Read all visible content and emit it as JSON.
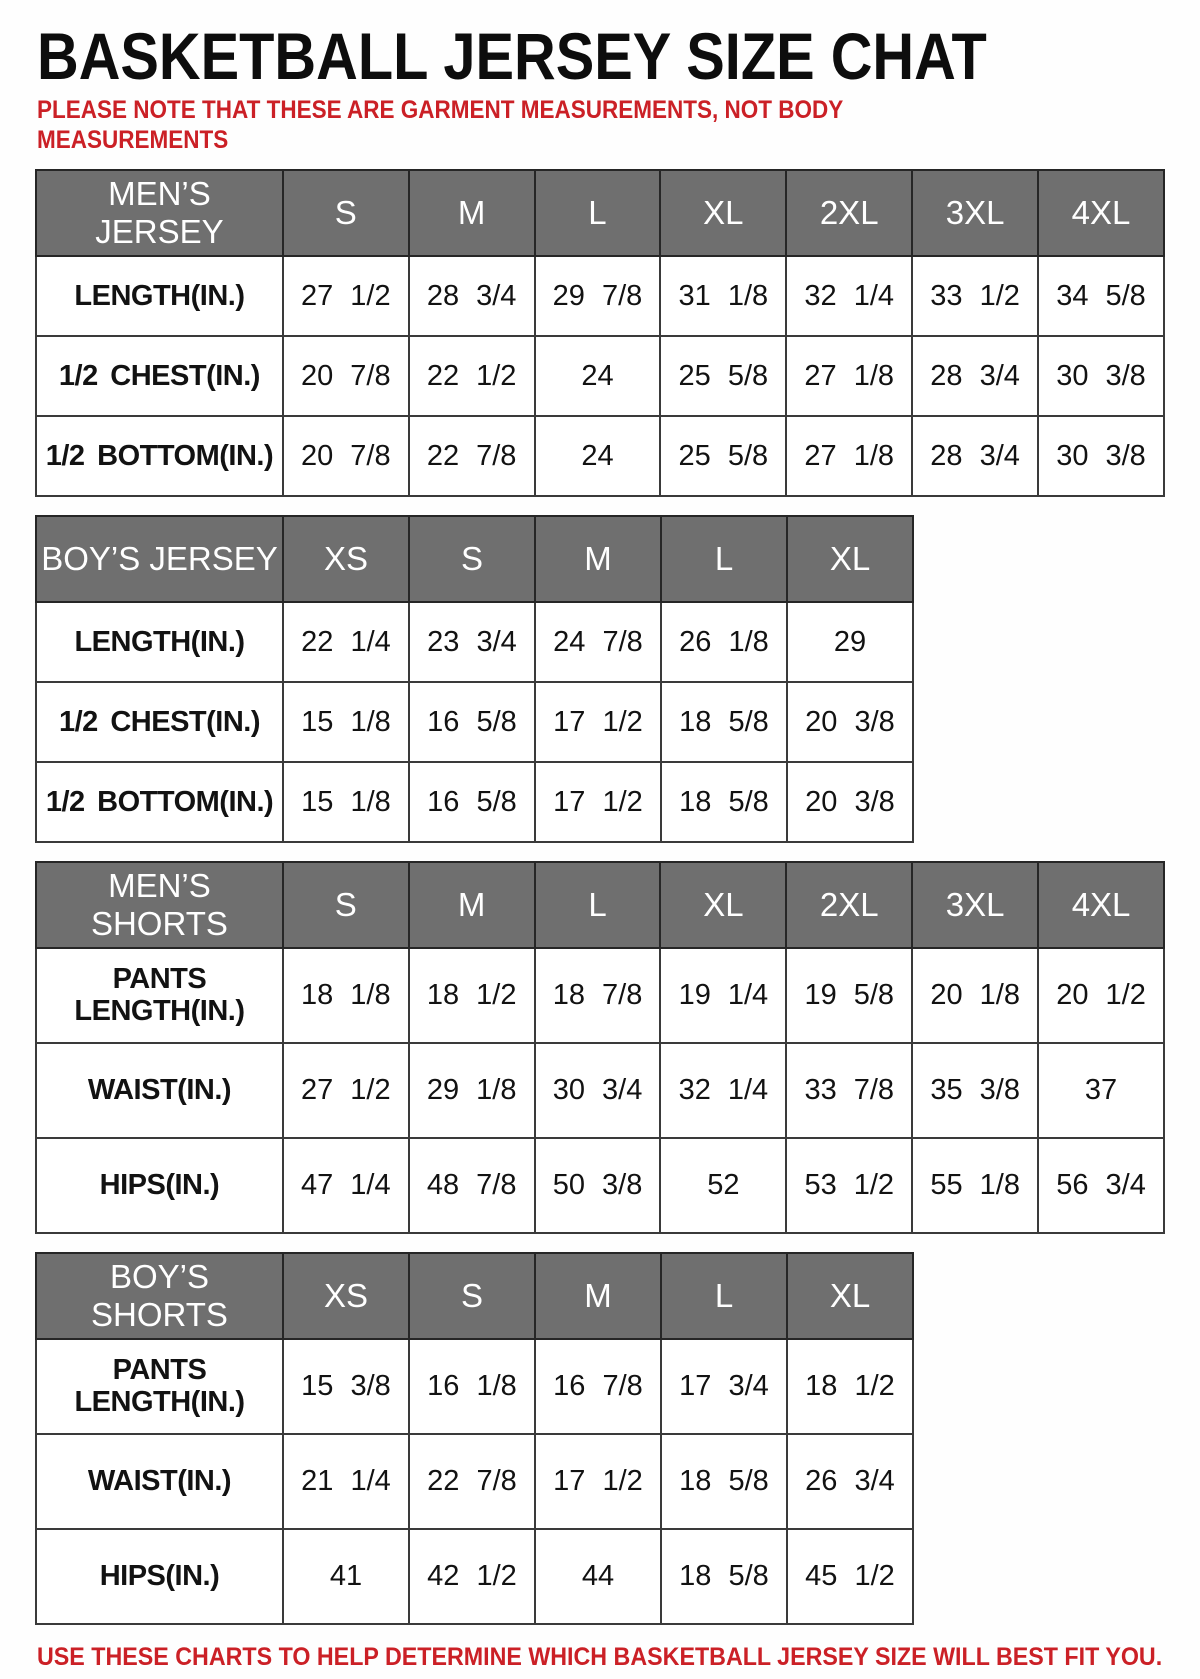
{
  "page": {
    "title": "BASKETBALL JERSEY SIZE CHAT",
    "note": "PLEASE NOTE THAT THESE ARE GARMENT MEASUREMENTS, NOT BODY MEASUREMENTS",
    "footer": "USE THESE CHARTS TO HELP DETERMINE WHICH BASKETBALL JERSEY SIZE WILL BEST FIT YOU.",
    "colors": {
      "accent_red": "#cb2026",
      "header_gray": "#6f6f6f",
      "header_text": "#ffffff",
      "border": "#3a3a3a"
    }
  },
  "tables": [
    {
      "name": "MEN’S JERSEY",
      "kind": "jersey",
      "columns": [
        "S",
        "M",
        "L",
        "XL",
        "2XL",
        "3XL",
        "4XL"
      ],
      "rows": [
        {
          "label": "LENGTH(IN.)",
          "values": [
            "27 1/2",
            "28 3/4",
            "29 7/8",
            "31 1/8",
            "32 1/4",
            "33 1/2",
            "34 5/8"
          ]
        },
        {
          "label": "1/2 CHEST(IN.)",
          "values": [
            "20 7/8",
            "22 1/2",
            "24",
            "25 5/8",
            "27 1/8",
            "28 3/4",
            "30 3/8"
          ]
        },
        {
          "label": "1/2 BOTTOM(IN.)",
          "values": [
            "20 7/8",
            "22 7/8",
            "24",
            "25 5/8",
            "27 1/8",
            "28 3/4",
            "30 3/8"
          ]
        }
      ]
    },
    {
      "name": "BOY’S JERSEY",
      "kind": "jersey",
      "columns": [
        "XS",
        "S",
        "M",
        "L",
        "XL"
      ],
      "rows": [
        {
          "label": "LENGTH(IN.)",
          "values": [
            "22 1/4",
            "23 3/4",
            "24 7/8",
            "26 1/8",
            "29"
          ]
        },
        {
          "label": "1/2 CHEST(IN.)",
          "values": [
            "15 1/8",
            "16 5/8",
            "17 1/2",
            "18 5/8",
            "20 3/8"
          ]
        },
        {
          "label": "1/2 BOTTOM(IN.)",
          "values": [
            "15 1/8",
            "16 5/8",
            "17 1/2",
            "18 5/8",
            "20 3/8"
          ]
        }
      ]
    },
    {
      "name": "MEN’S SHORTS",
      "kind": "shorts",
      "columns": [
        "S",
        "M",
        "L",
        "XL",
        "2XL",
        "3XL",
        "4XL"
      ],
      "rows": [
        {
          "label": "PANTS LENGTH(IN.)",
          "values": [
            "18 1/8",
            "18 1/2",
            "18 7/8",
            "19 1/4",
            "19 5/8",
            "20 1/8",
            "20 1/2"
          ]
        },
        {
          "label": "WAIST(IN.)",
          "values": [
            "27 1/2",
            "29 1/8",
            "30 3/4",
            "32 1/4",
            "33 7/8",
            "35 3/8",
            "37"
          ]
        },
        {
          "label": "HIPS(IN.)",
          "values": [
            "47 1/4",
            "48 7/8",
            "50 3/8",
            "52",
            "53 1/2",
            "55 1/8",
            "56 3/4"
          ]
        }
      ]
    },
    {
      "name": "BOY’S SHORTS",
      "kind": "shorts",
      "columns": [
        "XS",
        "S",
        "M",
        "L",
        "XL"
      ],
      "rows": [
        {
          "label": "PANTS LENGTH(IN.)",
          "values": [
            "15 3/8",
            "16 1/8",
            "16 7/8",
            "17 3/4",
            "18 1/2"
          ]
        },
        {
          "label": "WAIST(IN.)",
          "values": [
            "21 1/4",
            "22 7/8",
            "17 1/2",
            "18 5/8",
            "26 3/4"
          ]
        },
        {
          "label": "HIPS(IN.)",
          "values": [
            "41",
            "42 1/2",
            "44",
            "18 5/8",
            "45 1/2"
          ]
        }
      ]
    }
  ],
  "layout": {
    "label_col_width": 247,
    "size_col_width": 126
  }
}
